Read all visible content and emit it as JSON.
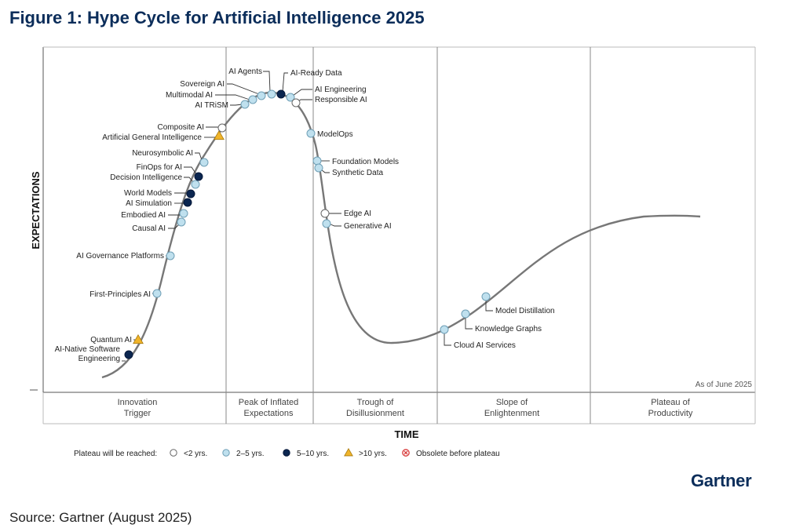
{
  "figure": {
    "title": "Figure 1: Hype Cycle for Artificial Intelligence 2025",
    "source": "Source: Gartner (August 2025)",
    "brand": "Gartner",
    "as_of": "As of June 2025"
  },
  "axes": {
    "y_label": "EXPECTATIONS",
    "x_label": "TIME"
  },
  "phases": [
    {
      "line1": "Innovation",
      "line2": "Trigger"
    },
    {
      "line1": "Peak of Inflated",
      "line2": "Expectations"
    },
    {
      "line1": "Trough of",
      "line2": "Disillusionment"
    },
    {
      "line1": "Slope of",
      "line2": "Enlightenment"
    },
    {
      "line1": "Plateau of",
      "line2": "Productivity"
    }
  ],
  "legend": {
    "title": "Plateau will be reached:",
    "items": [
      {
        "key": "lt2",
        "label": "<2 yrs."
      },
      {
        "key": "2to5",
        "label": "2–5 yrs."
      },
      {
        "key": "5to10",
        "label": "5–10 yrs."
      },
      {
        "key": "gt10",
        "label": ">10 yrs."
      },
      {
        "key": "obsolete",
        "label": "Obsolete before plateau"
      }
    ]
  },
  "colors": {
    "title": "#0b2d5a",
    "curve": "#777777",
    "lt2": "#ffffff",
    "2to5": "#bfe0ee",
    "5to10": "#0b2650",
    "gt10": "#f0b42a",
    "obsolete": "#d83a3a"
  },
  "technologies": [
    {
      "name": "AI-Native Software",
      "name2": "Engineering",
      "status": "5to10"
    },
    {
      "name": "Quantum AI",
      "status": "gt10"
    },
    {
      "name": "First-Principles AI",
      "status": "2to5"
    },
    {
      "name": "AI Governance Platforms",
      "status": "2to5"
    },
    {
      "name": "Causal AI",
      "status": "2to5"
    },
    {
      "name": "Embodied AI",
      "status": "2to5"
    },
    {
      "name": "AI Simulation",
      "status": "5to10"
    },
    {
      "name": "World Models",
      "status": "5to10"
    },
    {
      "name": "Decision Intelligence",
      "status": "2to5"
    },
    {
      "name": "FinOps for AI",
      "status": "5to10"
    },
    {
      "name": "Neurosymbolic AI",
      "status": "2to5"
    },
    {
      "name": "Artificial General Intelligence",
      "status": "gt10"
    },
    {
      "name": "Composite AI",
      "status": "lt2"
    },
    {
      "name": "AI TRiSM",
      "status": "2to5"
    },
    {
      "name": "Multimodal AI",
      "status": "2to5"
    },
    {
      "name": "Sovereign AI",
      "status": "2to5"
    },
    {
      "name": "AI Agents",
      "status": "2to5"
    },
    {
      "name": "AI-Ready Data",
      "status": "5to10"
    },
    {
      "name": "AI Engineering",
      "status": "2to5"
    },
    {
      "name": "Responsible AI",
      "status": "lt2"
    },
    {
      "name": "ModelOps",
      "status": "2to5"
    },
    {
      "name": "Foundation Models",
      "status": "2to5"
    },
    {
      "name": "Synthetic Data",
      "status": "2to5"
    },
    {
      "name": "Edge AI",
      "status": "lt2"
    },
    {
      "name": "Generative AI",
      "status": "2to5"
    },
    {
      "name": "Cloud AI Services",
      "status": "2to5"
    },
    {
      "name": "Knowledge Graphs",
      "status": "2to5"
    },
    {
      "name": "Model Distillation",
      "status": "2to5"
    }
  ]
}
